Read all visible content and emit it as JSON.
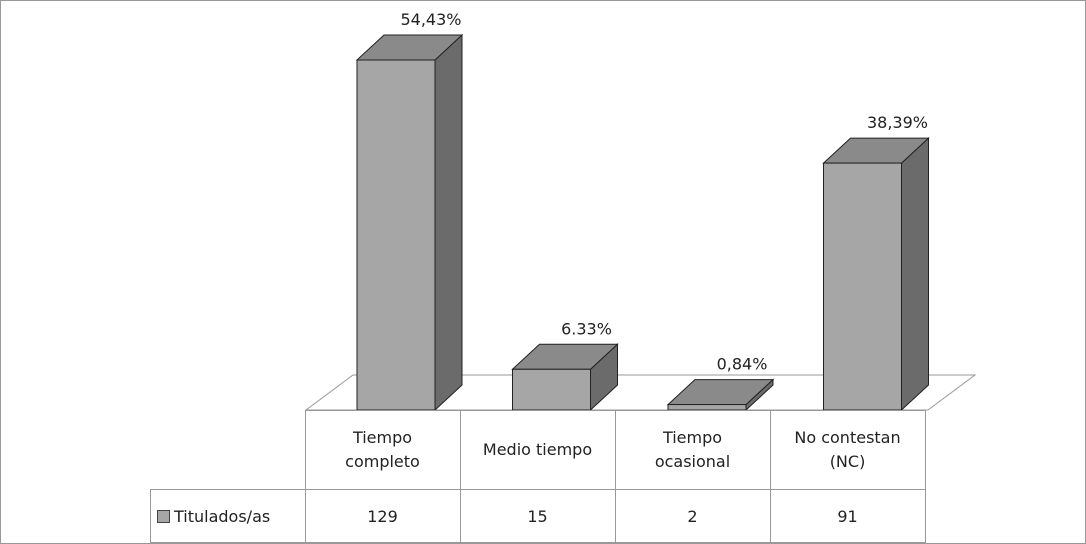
{
  "chart_data": {
    "type": "bar3d",
    "categories": [
      "Tiempo completo",
      "Medio tiempo",
      "Tiempo ocasional",
      "No contestan (NC)"
    ],
    "series": [
      {
        "name": "Titulados/as",
        "color": "#a6a6a6",
        "values": [
          129,
          15,
          2,
          91
        ]
      }
    ],
    "percentages": {
      "values": [
        54.43,
        6.33,
        0.84,
        38.39
      ],
      "value_labels": [
        "54,43%",
        "6.33%",
        "0,84%",
        "38,39%"
      ]
    }
  }
}
